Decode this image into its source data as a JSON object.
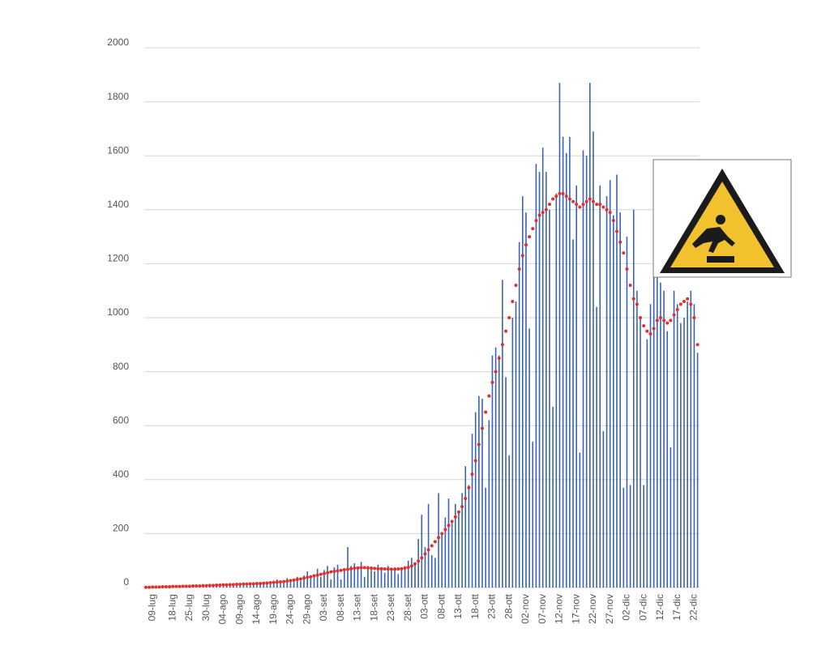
{
  "chart_data": {
    "type": "bar",
    "categories": [
      null,
      null,
      "09-lug",
      null,
      null,
      null,
      null,
      null,
      "18-lug",
      null,
      null,
      null,
      null,
      "25-lug",
      null,
      null,
      null,
      null,
      "30-lug",
      null,
      null,
      null,
      null,
      "04-ago",
      null,
      null,
      null,
      null,
      "09-ago",
      null,
      null,
      null,
      null,
      "14-ago",
      null,
      null,
      null,
      null,
      "19-ago",
      null,
      null,
      null,
      null,
      "24-ago",
      null,
      null,
      null,
      null,
      "29-ago",
      null,
      null,
      null,
      null,
      "03-set",
      null,
      null,
      null,
      null,
      "08-set",
      null,
      null,
      null,
      null,
      "13-set",
      null,
      null,
      null,
      null,
      "18-set",
      null,
      null,
      null,
      null,
      "23-set",
      null,
      null,
      null,
      null,
      "28-set",
      null,
      null,
      null,
      null,
      "03-ott",
      null,
      null,
      null,
      null,
      "08-ott",
      null,
      null,
      null,
      null,
      "13-ott",
      null,
      null,
      null,
      null,
      "18-ott",
      null,
      null,
      null,
      null,
      "23-ott",
      null,
      null,
      null,
      null,
      "28-ott",
      null,
      null,
      null,
      null,
      "02-nov",
      null,
      null,
      null,
      null,
      "07-nov",
      null,
      null,
      null,
      null,
      "12-nov",
      null,
      null,
      null,
      null,
      "17-nov",
      null,
      null,
      null,
      null,
      "22-nov",
      null,
      null,
      null,
      null,
      "27-nov",
      null,
      null,
      null,
      null,
      "02-dic",
      null,
      null,
      null,
      null,
      "07-dic",
      null,
      null,
      null,
      null,
      "12-dic",
      null,
      null,
      null,
      null,
      "17-dic",
      null,
      null,
      null,
      null,
      "22-dic",
      null
    ],
    "series": [
      {
        "type": "bar",
        "color": "#3a64b0",
        "values": [
          0,
          2,
          1,
          3,
          2,
          4,
          3,
          5,
          2,
          6,
          4,
          7,
          3,
          8,
          5,
          6,
          9,
          7,
          8,
          12,
          6,
          10,
          14,
          9,
          11,
          15,
          8,
          13,
          16,
          10,
          14,
          18,
          12,
          15,
          20,
          13,
          17,
          22,
          25,
          30,
          18,
          28,
          35,
          22,
          30,
          40,
          25,
          45,
          60,
          35,
          50,
          70,
          40,
          65,
          80,
          30,
          75,
          85,
          30,
          60,
          150,
          80,
          90,
          70,
          95,
          40,
          80,
          75,
          60,
          85,
          70,
          55,
          80,
          65,
          75,
          50,
          70,
          80,
          100,
          110,
          90,
          180,
          270,
          150,
          310,
          120,
          110,
          350,
          200,
          260,
          330,
          240,
          310,
          280,
          350,
          450,
          380,
          570,
          650,
          710,
          700,
          370,
          620,
          860,
          890,
          860,
          1140,
          780,
          490,
          1000,
          1060,
          1280,
          1450,
          1390,
          960,
          540,
          1570,
          1540,
          1630,
          1540,
          1400,
          670,
          1460,
          1870,
          1670,
          1610,
          1670,
          1290,
          1490,
          500,
          1620,
          1600,
          1870,
          1690,
          1040,
          1490,
          580,
          1450,
          1510,
          1380,
          1530,
          1390,
          370,
          1300,
          380,
          1400,
          1100,
          1000,
          380,
          920,
          1050,
          1150,
          1160,
          1130,
          1100,
          950,
          520,
          1100,
          1050,
          980,
          1000,
          1060,
          1100,
          1050,
          870
        ]
      },
      {
        "type": "line",
        "color": "#e0302a",
        "values": [
          1,
          1,
          2,
          2,
          2,
          3,
          3,
          3,
          4,
          4,
          4,
          5,
          5,
          5,
          6,
          6,
          6,
          7,
          7,
          8,
          8,
          9,
          9,
          10,
          10,
          11,
          11,
          12,
          12,
          13,
          13,
          14,
          14,
          15,
          15,
          16,
          17,
          18,
          19,
          20,
          21,
          22,
          24,
          26,
          28,
          30,
          32,
          35,
          38,
          40,
          43,
          46,
          49,
          52,
          55,
          58,
          60,
          62,
          64,
          66,
          68,
          70,
          72,
          73,
          74,
          74,
          73,
          72,
          71,
          70,
          70,
          69,
          69,
          68,
          68,
          69,
          70,
          72,
          75,
          80,
          88,
          98,
          110,
          125,
          140,
          155,
          170,
          185,
          200,
          215,
          230,
          245,
          262,
          280,
          300,
          330,
          370,
          420,
          470,
          530,
          590,
          650,
          710,
          760,
          800,
          850,
          900,
          950,
          1000,
          1060,
          1120,
          1180,
          1230,
          1270,
          1300,
          1330,
          1360,
          1380,
          1390,
          1400,
          1420,
          1440,
          1450,
          1460,
          1460,
          1450,
          1440,
          1430,
          1420,
          1410,
          1420,
          1430,
          1440,
          1430,
          1420,
          1420,
          1410,
          1400,
          1390,
          1360,
          1320,
          1280,
          1240,
          1180,
          1120,
          1070,
          1050,
          1000,
          970,
          950,
          940,
          960,
          990,
          1000,
          990,
          980,
          990,
          1010,
          1030,
          1050,
          1060,
          1070,
          1050,
          1000,
          900
        ]
      }
    ],
    "ylim": [
      0,
      2000
    ],
    "yticks": [
      0,
      200,
      400,
      600,
      800,
      1000,
      1200,
      1400,
      1600,
      1800,
      2000
    ],
    "grid": true
  }
}
